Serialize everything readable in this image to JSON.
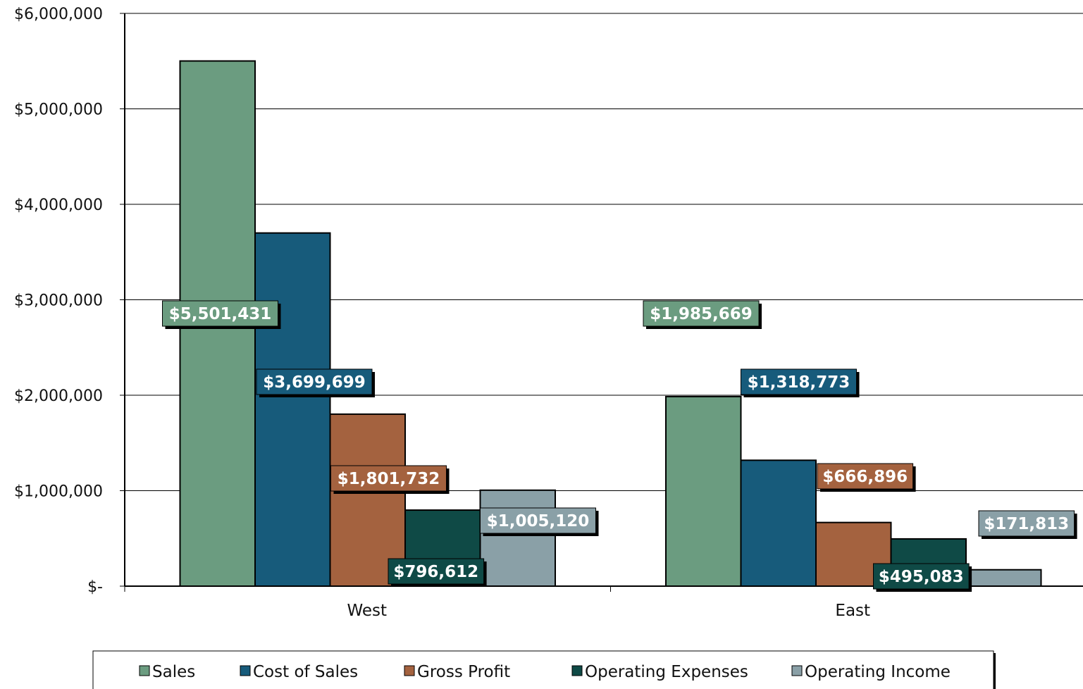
{
  "chart_data": {
    "type": "bar",
    "title": "",
    "xlabel": "",
    "ylabel": "",
    "categories": [
      "West",
      "East"
    ],
    "ylim": [
      0,
      6000000
    ],
    "yticks": [
      0,
      1000000,
      2000000,
      3000000,
      4000000,
      5000000,
      6000000
    ],
    "ytick_labels": [
      "$-",
      "$1,000,000",
      "$2,000,000",
      "$3,000,000",
      "$4,000,000",
      "$5,000,000",
      "$6,000,000"
    ],
    "grid": true,
    "legend_position": "bottom",
    "series": [
      {
        "name": "Sales",
        "color": "#6b9c80",
        "values": [
          5501431,
          1985669
        ],
        "labels": [
          "$5,501,431",
          "$1,985,669"
        ]
      },
      {
        "name": "Cost of Sales",
        "color": "#175b7b",
        "values": [
          3699699,
          1318773
        ],
        "labels": [
          "$3,699,699",
          "$1,318,773"
        ]
      },
      {
        "name": "Gross Profit",
        "color": "#a4623f",
        "values": [
          1801732,
          666896
        ],
        "labels": [
          "$1,801,732",
          "$666,896"
        ]
      },
      {
        "name": "Operating Expenses",
        "color": "#0f4a46",
        "values": [
          796612,
          495083
        ],
        "labels": [
          "$796,612",
          "$495,083"
        ]
      },
      {
        "name": "Operating Income",
        "color": "#8aa0a7",
        "values": [
          1005120,
          171813
        ],
        "labels": [
          "$1,005,120",
          "$171,813"
        ]
      }
    ]
  }
}
